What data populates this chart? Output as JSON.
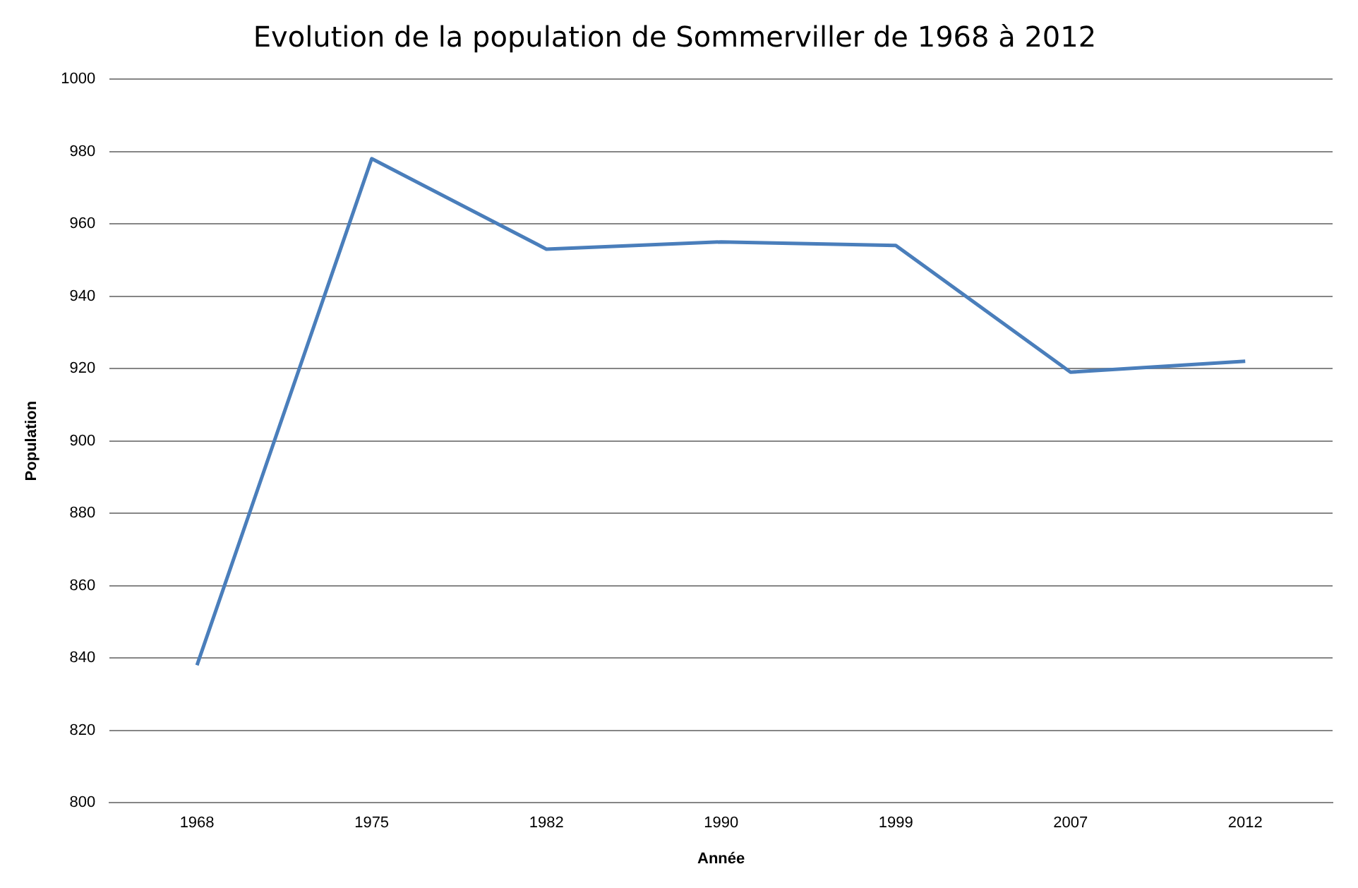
{
  "chart_data": {
    "type": "line",
    "title": "Evolution de la population de Sommerviller de 1968 à 2012",
    "xlabel": "Année",
    "ylabel": "Population",
    "categories": [
      "1968",
      "1975",
      "1982",
      "1990",
      "1999",
      "2007",
      "2012"
    ],
    "series": [
      {
        "color": "#4a7ebb",
        "values": [
          838,
          978,
          953,
          955,
          954,
          919,
          922
        ]
      }
    ],
    "ylim": [
      800,
      1000
    ],
    "yticks": [
      800,
      820,
      840,
      860,
      880,
      900,
      920,
      940,
      960,
      980,
      1000
    ],
    "grid": "y",
    "legend": false,
    "marker": "none",
    "line_style": "solid"
  }
}
